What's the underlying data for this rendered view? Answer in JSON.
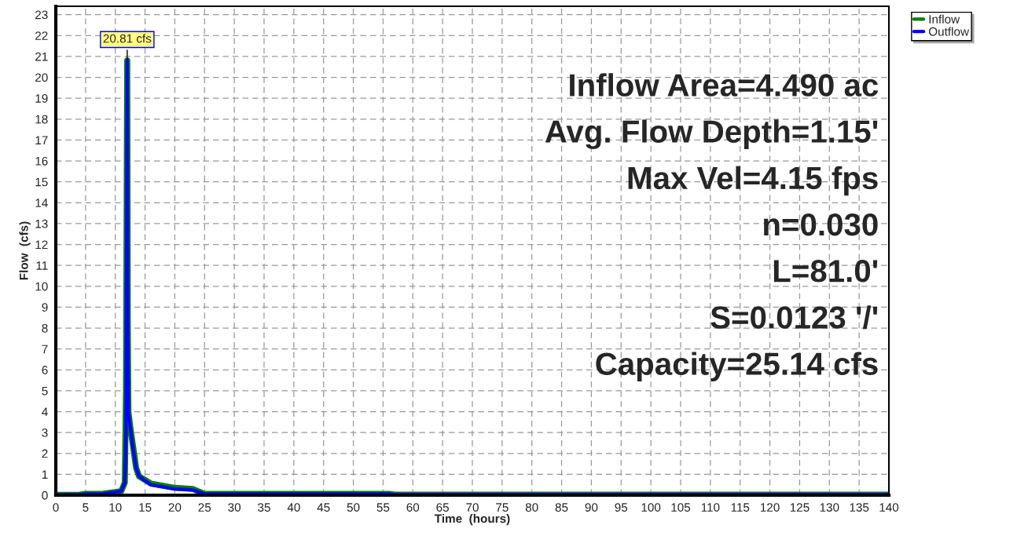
{
  "chart_data": {
    "type": "line",
    "xlabel": "Time  (hours)",
    "ylabel": "Flow  (cfs)",
    "xlim": [
      0,
      140
    ],
    "xticks": [
      0,
      5,
      10,
      15,
      20,
      25,
      30,
      35,
      40,
      45,
      50,
      55,
      60,
      65,
      70,
      75,
      80,
      85,
      90,
      95,
      100,
      105,
      110,
      115,
      120,
      125,
      130,
      135,
      140
    ],
    "ylim": [
      0,
      23.4
    ],
    "yticks": [
      0,
      1,
      2,
      3,
      4,
      5,
      6,
      7,
      8,
      9,
      10,
      11,
      12,
      13,
      14,
      15,
      16,
      17,
      18,
      19,
      20,
      21,
      22,
      23
    ],
    "grid": true,
    "legend": "top right",
    "line_style": "solid",
    "marker": "none",
    "series": [
      {
        "name": "Inflow",
        "color": "#008000",
        "x": [
          0,
          4,
          5,
          8,
          10,
          11,
          11.6,
          11.8,
          12.0,
          12.1,
          12.2,
          12.5,
          13,
          13.5,
          14,
          16,
          20,
          23,
          25,
          56,
          57,
          140
        ],
        "values": [
          0.02,
          0.03,
          0.06,
          0.07,
          0.15,
          0.2,
          0.6,
          5,
          20.81,
          8,
          4,
          3.3,
          2.3,
          1.3,
          0.9,
          0.55,
          0.35,
          0.3,
          0.06,
          0.06,
          0.03,
          0.03
        ]
      },
      {
        "name": "Outflow",
        "color": "#0000ff",
        "x": [
          0,
          4,
          5,
          8,
          10,
          11,
          11.6,
          11.8,
          12.0,
          12.1,
          12.2,
          12.5,
          13,
          13.5,
          14,
          16,
          20,
          23,
          25,
          56,
          57,
          140
        ],
        "values": [
          0.02,
          0.03,
          0.06,
          0.07,
          0.15,
          0.2,
          0.6,
          3,
          20.81,
          8,
          4,
          3.3,
          2.2,
          1.3,
          0.9,
          0.5,
          0.3,
          0.25,
          0.06,
          0.06,
          0.03,
          0.03
        ]
      }
    ],
    "annotations": [
      {
        "text": "20.81 cfs",
        "x": 12.0,
        "y": 20.81
      },
      "Inflow Area=4.490 ac",
      "Avg. Flow Depth=1.15'",
      "Max Vel=4.15 fps",
      "n=0.030",
      "L=81.0'",
      "S=0.0123 '/'",
      "Capacity=25.14 cfs"
    ]
  }
}
